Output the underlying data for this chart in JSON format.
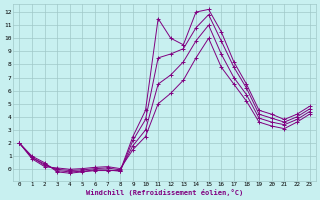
{
  "xlabel": "Windchill (Refroidissement éolien,°C)",
  "bg_color": "#c8f0f0",
  "grid_color": "#a0c8c8",
  "line_color": "#800080",
  "x_ticks": [
    0,
    1,
    2,
    3,
    4,
    5,
    6,
    7,
    8,
    9,
    10,
    11,
    12,
    13,
    14,
    15,
    16,
    17,
    18,
    19,
    20,
    21,
    22,
    23
  ],
  "y_ticks": [
    0,
    1,
    2,
    3,
    4,
    5,
    6,
    7,
    8,
    9,
    10,
    11,
    12
  ],
  "ylim": [
    -0.9,
    12.6
  ],
  "xlim": [
    -0.5,
    23.5
  ],
  "series": [
    [
      2.0,
      1.0,
      0.5,
      -0.2,
      -0.3,
      -0.2,
      -0.1,
      -0.1,
      -0.1,
      2.5,
      4.5,
      11.5,
      10.0,
      9.5,
      12.0,
      12.2,
      10.5,
      8.2,
      6.5,
      4.5,
      4.2,
      3.8,
      4.2,
      4.8
    ],
    [
      2.0,
      0.9,
      0.4,
      -0.1,
      -0.2,
      -0.15,
      -0.05,
      -0.05,
      -0.15,
      2.2,
      3.8,
      8.5,
      8.8,
      9.2,
      10.8,
      11.8,
      9.8,
      7.8,
      6.2,
      4.2,
      3.9,
      3.6,
      4.0,
      4.6
    ],
    [
      2.0,
      0.9,
      0.3,
      0.0,
      -0.1,
      -0.05,
      0.05,
      0.1,
      -0.05,
      1.8,
      3.0,
      6.5,
      7.2,
      8.2,
      9.8,
      11.0,
      8.8,
      7.0,
      5.7,
      3.9,
      3.6,
      3.4,
      3.8,
      4.4
    ],
    [
      2.0,
      0.8,
      0.2,
      0.1,
      0.0,
      0.05,
      0.15,
      0.2,
      0.05,
      1.5,
      2.5,
      5.0,
      5.8,
      6.8,
      8.5,
      10.0,
      7.8,
      6.5,
      5.2,
      3.6,
      3.3,
      3.1,
      3.6,
      4.2
    ]
  ]
}
